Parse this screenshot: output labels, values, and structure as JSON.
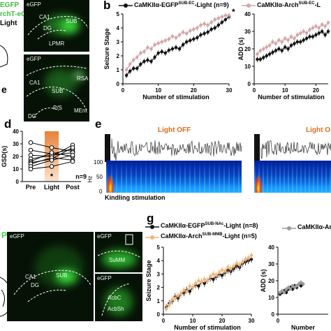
{
  "panels": {
    "a_top_text": {
      "line1": "EGFP",
      "line2": "rchT-eGFP",
      "line3": "Light"
    },
    "b_letter": "b",
    "d_letter": "d",
    "e_letter": "e",
    "e_small_letter": "e",
    "g_letter": "g",
    "p_letter": "P"
  },
  "micro_top": {
    "img1": {
      "title": "eGFP",
      "labels": [
        "CA1",
        "SUB",
        "DG",
        "LPMR"
      ]
    },
    "img2": {
      "title": "eGFP",
      "labels": [
        "CA1",
        "SUB",
        "P/S",
        "MEnt",
        "DG",
        "RSA"
      ]
    }
  },
  "micro_bottom": {
    "img1": {
      "title": "eGFP",
      "labels": [
        "CA1",
        "SUB",
        "DG"
      ]
    },
    "img2": {
      "title": "eGFP",
      "labels": [
        "SuMM"
      ]
    },
    "img3": {
      "title": "eGFP",
      "labels": [
        "AcbC",
        "AcbSh"
      ]
    }
  },
  "legend_b": {
    "s1": "CaMKIIα-EGFP",
    "s1_sup": "SUB-EC",
    "s1_tail": "-Light (n=9)",
    "s2": "CaMKIIα-Arch",
    "s2_sup": "SUB-EC",
    "s2_tail": "-L",
    "star": "*"
  },
  "legend_g": {
    "s1": "CaMKIIα-EGFP",
    "s1_sup": "SUB-NAc",
    "s1_tail": "-Light (n=8)",
    "s2": "CaMKIIα-Arch",
    "s2_sup": "SUB-MMB",
    "s2_tail": "-Light (n=5)",
    "s3": "CaMKIIα-Arc"
  },
  "panel_e": {
    "light_off": "Light OFF",
    "light_on": "Light O",
    "hz_label": "Hz",
    "y_ticks": [
      "100",
      "50",
      "0"
    ],
    "caption": "Kindling stimulation"
  },
  "panel_d": {
    "ylabel": "GSD(s)",
    "star": "*",
    "n_label": "n=9"
  },
  "colors": {
    "egfp_series": "#111111",
    "arch_sub_ec": "#d4a6a6",
    "arch_sub_mmb": "#f0b47a",
    "arch_grey": "#9a9a9a",
    "light_bar_top": "#e8823a",
    "light_bar_bottom": "#fbe3cf",
    "micro_green": "#3bdc3b",
    "text_orange": "#e06a1a"
  },
  "chart_data": [
    {
      "id": "b_seizure",
      "type": "line",
      "xlabel": "Number of stimulation",
      "ylabel": "Seizure Stage",
      "xlim": [
        0,
        30
      ],
      "ylim": [
        0,
        5
      ],
      "xticks": [
        "0",
        "10",
        "20",
        "30"
      ],
      "yticks": [
        "0",
        "1",
        "2",
        "3",
        "4",
        "5"
      ],
      "series": [
        {
          "name": "CaMKIIα-EGFP SUB-EC-Light (n=9)",
          "color": "#111111",
          "x": [
            1,
            2,
            3,
            4,
            5,
            6,
            7,
            8,
            9,
            10,
            11,
            12,
            13,
            14,
            15,
            16,
            17,
            18,
            19,
            20,
            21,
            22,
            23,
            24,
            25,
            26,
            27,
            28,
            29,
            30
          ],
          "y": [
            0.6,
            0.9,
            1.1,
            1.1,
            1.4,
            1.6,
            1.7,
            1.6,
            1.9,
            2.2,
            2.3,
            2.2,
            2.4,
            2.5,
            2.6,
            2.5,
            2.8,
            3.0,
            3.1,
            3.2,
            3.3,
            3.5,
            3.6,
            3.7,
            3.9,
            4.0,
            4.2,
            4.4,
            4.6,
            4.8
          ]
        },
        {
          "name": "CaMKIIα-Arch SUB-EC-Light",
          "color": "#d4a6a6",
          "x": [
            1,
            2,
            3,
            4,
            5,
            6,
            7,
            8,
            9,
            10,
            11,
            12,
            13,
            14,
            15,
            16,
            17,
            18,
            19,
            20,
            21,
            22,
            23,
            24,
            25,
            26,
            27,
            28,
            29,
            30
          ],
          "y": [
            1.0,
            1.4,
            1.7,
            1.9,
            2.2,
            2.3,
            2.6,
            2.5,
            2.8,
            2.9,
            3.0,
            3.1,
            3.2,
            3.4,
            3.3,
            3.5,
            3.7,
            3.6,
            3.8,
            3.9,
            4.0,
            4.2,
            4.3,
            4.2,
            4.4,
            4.6,
            4.7,
            4.8,
            4.9,
            4.9
          ]
        }
      ]
    },
    {
      "id": "b_add",
      "type": "line",
      "xlabel": "Number of stimulation",
      "ylabel": "ADD (s)",
      "xlim": [
        0,
        24
      ],
      "ylim": [
        0,
        40
      ],
      "xticks": [
        "0",
        "10",
        "20"
      ],
      "yticks": [
        "0",
        "10",
        "20",
        "30",
        "40"
      ],
      "series": [
        {
          "name": "CaMKIIα-EGFP SUB-EC-Light",
          "color": "#111111",
          "x": [
            1,
            2,
            3,
            4,
            5,
            6,
            7,
            8,
            9,
            10,
            11,
            12,
            13,
            14,
            15,
            16,
            17,
            18,
            19,
            20,
            21,
            22,
            23,
            24
          ],
          "y": [
            14,
            14,
            15,
            16,
            17,
            18,
            19,
            20,
            19,
            21,
            20,
            22,
            23,
            24,
            24,
            25,
            26,
            27,
            27,
            28,
            29,
            30,
            28,
            30
          ]
        },
        {
          "name": "CaMKIIα-Arch SUB-EC-Light",
          "color": "#d4a6a6",
          "x": [
            1,
            2,
            3,
            4,
            5,
            6,
            7,
            8,
            9,
            10,
            11,
            12,
            13,
            14,
            15,
            16,
            17,
            18,
            19,
            20,
            21,
            22,
            23,
            24
          ],
          "y": [
            17,
            19,
            20,
            21,
            22,
            24,
            23,
            25,
            24,
            26,
            25,
            27,
            26,
            28,
            29,
            30,
            29,
            31,
            32,
            33,
            32,
            34,
            33,
            35
          ]
        }
      ]
    },
    {
      "id": "d_gsd",
      "type": "line",
      "xlabel": "",
      "ylabel": "GSD(s)",
      "categories": [
        "Pre",
        "Light",
        "Post"
      ],
      "ylim": [
        0,
        40
      ],
      "yticks": [
        "0",
        "10",
        "20",
        "30",
        "40"
      ],
      "series": [
        {
          "values": [
            31,
            27,
            24
          ]
        },
        {
          "values": [
            25,
            22,
            26
          ]
        },
        {
          "values": [
            21,
            20,
            29
          ]
        },
        {
          "values": [
            18,
            21,
            23
          ]
        },
        {
          "values": [
            16,
            23,
            20
          ]
        },
        {
          "values": [
            15,
            18,
            27
          ]
        },
        {
          "values": [
            14,
            19,
            17
          ]
        },
        {
          "values": [
            12,
            17,
            21
          ]
        },
        {
          "values": [
            10,
            12,
            16
          ]
        }
      ]
    },
    {
      "id": "g_seizure",
      "type": "line",
      "xlabel": "Number of stimulation",
      "ylabel": "Seizure Stage",
      "xlim": [
        0,
        30
      ],
      "ylim": [
        0,
        5
      ],
      "xticks": [
        "0",
        "10",
        "20",
        "30"
      ],
      "yticks": [
        "0",
        "1",
        "2",
        "3",
        "4",
        "5"
      ],
      "series": [
        {
          "name": "CaMKIIα-EGFP SUB-NAc-Light (n=8)",
          "color": "#111111",
          "x": [
            1,
            2,
            3,
            4,
            5,
            6,
            7,
            8,
            9,
            10,
            11,
            12,
            13,
            14,
            15,
            16,
            17,
            18,
            19,
            20,
            21,
            22,
            23,
            24,
            25,
            26,
            27,
            28,
            29,
            30
          ],
          "y": [
            0.5,
            0.8,
            1.0,
            1.3,
            1.2,
            1.5,
            1.6,
            1.8,
            1.7,
            2.0,
            2.2,
            2.1,
            2.4,
            2.3,
            2.5,
            2.7,
            2.6,
            2.8,
            3.0,
            2.9,
            3.1,
            3.3,
            3.2,
            3.4,
            3.6,
            3.5,
            3.8,
            3.9,
            4.0,
            4.1
          ]
        },
        {
          "name": "CaMKIIα-Arch SUB-MMB-Light (n=5)",
          "color": "#f0b47a",
          "x": [
            1,
            2,
            3,
            4,
            5,
            6,
            7,
            8,
            9,
            10,
            11,
            12,
            13,
            14,
            15,
            16,
            17,
            18,
            19,
            20,
            21,
            22,
            23,
            24,
            25,
            26,
            27,
            28,
            29,
            30
          ],
          "y": [
            0.4,
            0.7,
            1.1,
            1.2,
            1.4,
            1.5,
            1.8,
            1.7,
            2.1,
            2.0,
            2.3,
            2.5,
            2.4,
            2.6,
            2.5,
            2.8,
            3.0,
            2.9,
            3.1,
            3.3,
            3.2,
            3.5,
            3.4,
            3.6,
            3.8,
            3.7,
            3.9,
            4.1,
            4.2,
            4.4
          ]
        }
      ]
    },
    {
      "id": "g_add",
      "type": "line",
      "xlabel": "Number",
      "ylabel": "ADD (s)",
      "xlim": [
        0,
        24
      ],
      "ylim": [
        0,
        40
      ],
      "xticks": [
        "0"
      ],
      "yticks": [
        "0",
        "10",
        "20",
        "30",
        "40"
      ],
      "series": [
        {
          "name": "EGFP",
          "color": "#111111",
          "x": [
            1,
            2,
            3,
            4,
            5,
            6,
            7,
            8,
            9,
            10,
            11,
            12
          ],
          "y": [
            12,
            13,
            14,
            13,
            15,
            16,
            15,
            17,
            16,
            18,
            17,
            18
          ]
        },
        {
          "name": "Arch",
          "color": "#9a9a9a",
          "x": [
            1,
            2,
            3,
            4,
            5,
            6,
            7,
            8,
            9,
            10,
            11,
            12
          ],
          "y": [
            13,
            14,
            13,
            15,
            16,
            15,
            17,
            16,
            17,
            18,
            19,
            18
          ]
        }
      ]
    }
  ]
}
